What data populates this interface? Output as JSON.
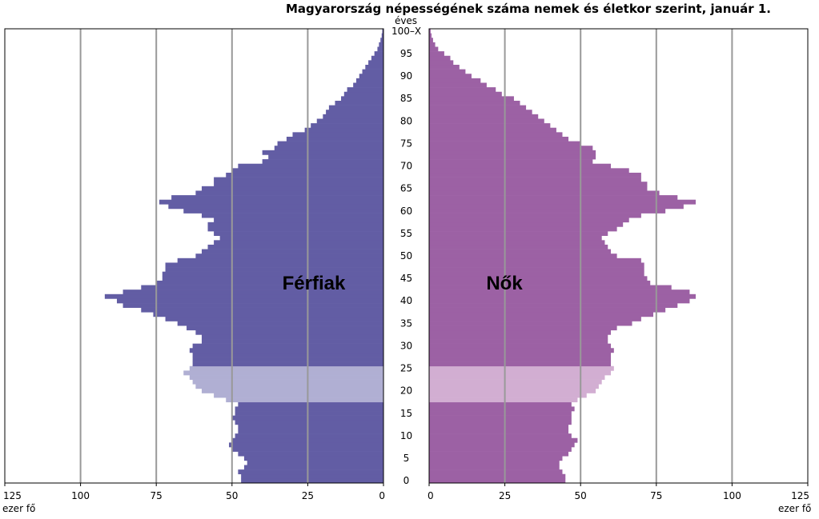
{
  "chart_data": {
    "type": "bar",
    "orientation": "population-pyramid",
    "title": "Magyarország népességének száma nemek és életkor szerint, január 1.",
    "age_axis_label": "éves",
    "age_ticks": [
      "100–X",
      "95",
      "90",
      "85",
      "80",
      "75",
      "70",
      "65",
      "60",
      "55",
      "50",
      "45",
      "40",
      "35",
      "30",
      "25",
      "20",
      "15",
      "10",
      "5",
      "0"
    ],
    "value_ticks": [
      "125",
      "100",
      "75",
      "50",
      "25",
      "0"
    ],
    "xlim": [
      0,
      125
    ],
    "unit_label": "ezer fő",
    "highlight_age_range": [
      18,
      25
    ],
    "grid": true,
    "colors": {
      "male": "#625da4",
      "male_highlight": "#b0afd3",
      "female": "#9c61a4",
      "female_highlight": "#d2aed2",
      "grid": "#999999"
    },
    "ages": [
      0,
      1,
      2,
      3,
      4,
      5,
      6,
      7,
      8,
      9,
      10,
      11,
      12,
      13,
      14,
      15,
      16,
      17,
      18,
      19,
      20,
      21,
      22,
      23,
      24,
      25,
      26,
      27,
      28,
      29,
      30,
      31,
      32,
      33,
      34,
      35,
      36,
      37,
      38,
      39,
      40,
      41,
      42,
      43,
      44,
      45,
      46,
      47,
      48,
      49,
      50,
      51,
      52,
      53,
      54,
      55,
      56,
      57,
      58,
      59,
      60,
      61,
      62,
      63,
      64,
      65,
      66,
      67,
      68,
      69,
      70,
      71,
      72,
      73,
      74,
      75,
      76,
      77,
      78,
      79,
      80,
      81,
      82,
      83,
      84,
      85,
      86,
      87,
      88,
      89,
      90,
      91,
      92,
      93,
      94,
      95,
      96,
      97,
      98,
      99,
      100
    ],
    "series": [
      {
        "name": "Férfiak",
        "values": [
          47,
          47,
          48,
          46,
          45,
          46,
          48,
          50,
          51,
          50,
          49,
          48,
          48,
          49,
          50,
          49,
          49,
          48,
          52,
          56,
          60,
          62,
          63,
          64,
          66,
          64,
          63,
          63,
          63,
          64,
          63,
          60,
          60,
          62,
          65,
          68,
          72,
          76,
          80,
          86,
          88,
          92,
          86,
          80,
          75,
          73,
          73,
          72,
          72,
          68,
          62,
          60,
          58,
          56,
          54,
          56,
          58,
          58,
          56,
          60,
          66,
          71,
          74,
          70,
          62,
          60,
          56,
          56,
          52,
          50,
          48,
          40,
          38,
          40,
          36,
          35,
          32,
          30,
          26,
          24,
          22,
          20,
          19,
          18,
          16,
          14,
          13,
          12,
          10,
          9,
          8,
          7,
          6,
          5,
          4,
          3,
          2,
          1.5,
          1,
          0.6,
          0.4
        ]
      },
      {
        "name": "Nők",
        "values": [
          45,
          45,
          44,
          43,
          43,
          44,
          46,
          47,
          48,
          49,
          47,
          46,
          46,
          47,
          47,
          47,
          48,
          47,
          49,
          52,
          55,
          56,
          57,
          58,
          60,
          61,
          60,
          60,
          60,
          61,
          60,
          59,
          59,
          60,
          62,
          67,
          70,
          74,
          78,
          82,
          86,
          88,
          86,
          80,
          73,
          72,
          71,
          71,
          71,
          70,
          62,
          60,
          59,
          58,
          57,
          59,
          62,
          64,
          66,
          70,
          78,
          84,
          88,
          82,
          76,
          72,
          72,
          70,
          70,
          66,
          60,
          54,
          55,
          55,
          54,
          50,
          46,
          44,
          42,
          40,
          38,
          36,
          34,
          32,
          30,
          28,
          24,
          22,
          19,
          17,
          14,
          12,
          10,
          8,
          7,
          5,
          3,
          2,
          1.3,
          0.8,
          0.5
        ]
      }
    ]
  },
  "labels": {
    "male": "Férfiak",
    "female": "Nők"
  }
}
